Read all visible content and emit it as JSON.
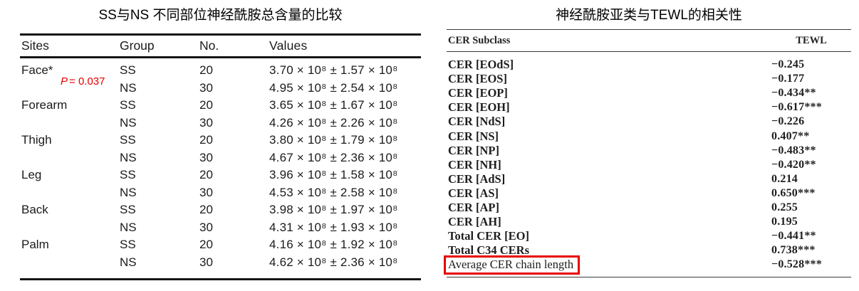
{
  "colors": {
    "red_annotation": "#e60000",
    "highlight_box": "#e60000",
    "rule_dark": "#161616",
    "rule_gray": "#3a3a3a"
  },
  "left_table": {
    "title": "SS与NS 不同部位神经酰胺总含量的比较",
    "headers": [
      "Sites",
      "Group",
      "No.",
      "Values"
    ],
    "p_label": "P",
    "p_value": "= 0.037",
    "rows": [
      {
        "site": "Face*",
        "group": "SS",
        "no": "20",
        "value": "3.70 × 10⁸ ± 1.57 × 10⁸"
      },
      {
        "site": "",
        "group": "NS",
        "no": "30",
        "value": "4.95 × 10⁸ ± 2.54 × 10⁸"
      },
      {
        "site": "Forearm",
        "group": "SS",
        "no": "20",
        "value": "3.65 × 10⁸ ± 1.67 × 10⁸"
      },
      {
        "site": "",
        "group": "NS",
        "no": "30",
        "value": "4.26 × 10⁸ ± 2.26 × 10⁸"
      },
      {
        "site": "Thigh",
        "group": "SS",
        "no": "20",
        "value": "3.80 × 10⁸ ± 1.79 × 10⁸"
      },
      {
        "site": "",
        "group": "NS",
        "no": "30",
        "value": "4.67 × 10⁸ ± 2.36 × 10⁸"
      },
      {
        "site": "Leg",
        "group": "SS",
        "no": "20",
        "value": "3.96 × 10⁸ ± 1.58 × 10⁸"
      },
      {
        "site": "",
        "group": "NS",
        "no": "30",
        "value": "4.53 × 10⁸ ± 2.58 × 10⁸"
      },
      {
        "site": "Back",
        "group": "SS",
        "no": "20",
        "value": "3.98 × 10⁸ ± 1.97 × 10⁸"
      },
      {
        "site": "",
        "group": "NS",
        "no": "30",
        "value": "4.31 × 10⁸ ± 1.93 × 10⁸"
      },
      {
        "site": "Palm",
        "group": "SS",
        "no": "20",
        "value": "4.16 × 10⁸ ± 1.92 × 10⁸"
      },
      {
        "site": "",
        "group": "NS",
        "no": "30",
        "value": "4.62 × 10⁸ ± 2.36 × 10⁸"
      }
    ]
  },
  "right_table": {
    "title": "神经酰胺亚类与TEWL的相关性",
    "headers": [
      "CER Subclass",
      "TEWL"
    ],
    "rows": [
      {
        "label": "CER [EOdS]",
        "tewl": "−0.245",
        "bold": true,
        "highlighted": false
      },
      {
        "label": "CER [EOS]",
        "tewl": "−0.177",
        "bold": true,
        "highlighted": false
      },
      {
        "label": "CER [EOP]",
        "tewl": "−0.434**",
        "bold": true,
        "highlighted": false
      },
      {
        "label": "CER [EOH]",
        "tewl": "−0.617***",
        "bold": true,
        "highlighted": false
      },
      {
        "label": "CER [NdS]",
        "tewl": "−0.226",
        "bold": true,
        "highlighted": false
      },
      {
        "label": "CER [NS]",
        "tewl": "0.407**",
        "bold": true,
        "highlighted": false
      },
      {
        "label": "CER [NP]",
        "tewl": "−0.483**",
        "bold": true,
        "highlighted": false
      },
      {
        "label": "CER [NH]",
        "tewl": "−0.420**",
        "bold": true,
        "highlighted": false
      },
      {
        "label": "CER [AdS]",
        "tewl": "0.214",
        "bold": true,
        "highlighted": false
      },
      {
        "label": "CER [AS]",
        "tewl": "0.650***",
        "bold": true,
        "highlighted": false
      },
      {
        "label": "CER [AP]",
        "tewl": "0.255",
        "bold": true,
        "highlighted": false
      },
      {
        "label": "CER [AH]",
        "tewl": "0.195",
        "bold": true,
        "highlighted": false
      },
      {
        "label": "Total CER [EO]",
        "tewl": "−0.441**",
        "bold": true,
        "highlighted": false
      },
      {
        "label": "Total C34 CERs",
        "tewl": "0.738***",
        "bold": true,
        "highlighted": false
      },
      {
        "label": "Average CER chain length",
        "tewl": "−0.528***",
        "bold": false,
        "highlighted": true
      }
    ]
  }
}
